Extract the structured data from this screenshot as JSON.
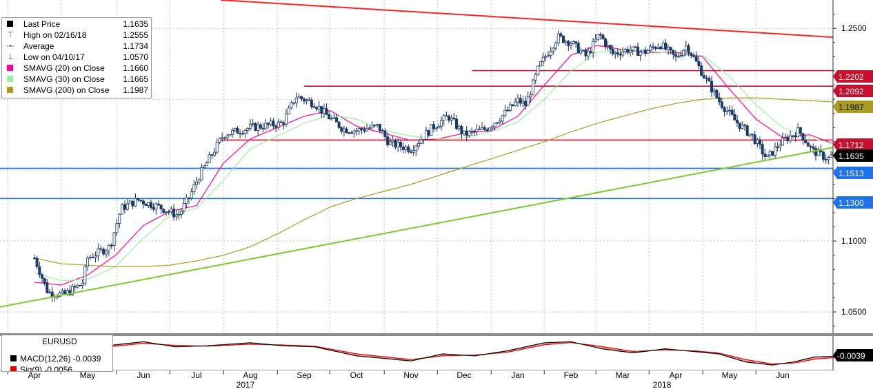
{
  "legend": [
    {
      "label": "Last Price",
      "value": "1.1635",
      "glyph": "square",
      "color": "#000000"
    },
    {
      "label": "High on 02/16/18",
      "value": "1.2555",
      "glyph": "T",
      "color": "#555555"
    },
    {
      "label": "Average",
      "value": "1.1734",
      "glyph": "dash",
      "color": "#555555"
    },
    {
      "label": "Low on 04/10/17",
      "value": "1.0570",
      "glyph": "L",
      "color": "#555555"
    },
    {
      "label": "SMAVG (20) on Close",
      "value": "1.1660",
      "glyph": "square",
      "color": "#ff00a0"
    },
    {
      "label": "SMAVG (30) on Close",
      "value": "1.1665",
      "glyph": "square",
      "color": "#9cf29c"
    },
    {
      "label": "SMAVG (200) on Close",
      "value": "1.1987",
      "glyph": "square",
      "color": "#a99c1e"
    }
  ],
  "macd_panel": {
    "title": "EURUSD",
    "rows": [
      {
        "label": "MACD(12,26)",
        "value": "-0.0039",
        "color": "#000000"
      },
      {
        "label": "Sig(9)",
        "value": "-0.0056",
        "color": "#e00000"
      }
    ],
    "last_value_tag": "-0.0039"
  },
  "chart_data": {
    "type": "candlestick",
    "instrument": "EURUSD",
    "x_labels": [
      "Apr",
      "May",
      "Jun",
      "Jul",
      "Aug",
      "Sep",
      "Oct",
      "Nov",
      "Dec",
      "Jan",
      "Feb",
      "Mar",
      "Apr",
      "May",
      "Jun"
    ],
    "year_labels": [
      "2017",
      "2018"
    ],
    "y_ticks": [
      "1.2500",
      "1.1000",
      "1.0500"
    ],
    "ylim": [
      1.035,
      1.27
    ],
    "grid": true,
    "price_tags": [
      {
        "label": "1.2202",
        "value": 1.2202,
        "bg": "#c8102e",
        "fg": "#ffffff"
      },
      {
        "label": "1.2092",
        "value": 1.2092,
        "bg": "#c8102e",
        "fg": "#ffffff"
      },
      {
        "label": "1.1987",
        "value": 1.1987,
        "bg": "#a99c1e",
        "fg": "#000000"
      },
      {
        "label": "1.1712",
        "value": 1.1712,
        "bg": "#c8102e",
        "fg": "#ffffff"
      },
      {
        "label": "1.1635",
        "value": 1.1635,
        "bg": "#000000",
        "fg": "#ffffff"
      },
      {
        "label": "1.1513",
        "value": 1.1513,
        "bg": "#1e73e8",
        "fg": "#ffffff"
      },
      {
        "label": "1.1300",
        "value": 1.13,
        "bg": "#1e73e8",
        "fg": "#ffffff"
      }
    ],
    "horizontal_levels": [
      {
        "value": 1.2202,
        "from_month": 8.15,
        "color": "#c8102e"
      },
      {
        "value": 1.2092,
        "from_month": 5.0,
        "color": "#c8102e"
      },
      {
        "value": 1.1712,
        "from_month": 3.45,
        "color": "#c8102e"
      },
      {
        "value": 1.1513,
        "from_month": 0.0,
        "color": "#1e73e8"
      },
      {
        "value": 1.13,
        "from_month": 0.0,
        "color": "#1e73e8"
      }
    ],
    "trend_lines": [
      {
        "name": "resistance",
        "from": [
          3.45,
          1.27
        ],
        "to": [
          15.4,
          1.2427
        ],
        "color": "#ff2020"
      },
      {
        "name": "support",
        "from": [
          0.0,
          1.0535
        ],
        "to": [
          15.4,
          1.1693
        ],
        "color": "#7dc832"
      }
    ],
    "price_anchors": [
      [
        0.0,
        1.088
      ],
      [
        0.25,
        1.064
      ],
      [
        0.55,
        1.062
      ],
      [
        0.9,
        1.07
      ],
      [
        1.0,
        1.088
      ],
      [
        1.4,
        1.096
      ],
      [
        1.6,
        1.123
      ],
      [
        1.9,
        1.129
      ],
      [
        2.3,
        1.124
      ],
      [
        2.65,
        1.118
      ],
      [
        2.85,
        1.13
      ],
      [
        3.05,
        1.146
      ],
      [
        3.5,
        1.175
      ],
      [
        4.0,
        1.18
      ],
      [
        4.6,
        1.183
      ],
      [
        4.85,
        1.202
      ],
      [
        5.2,
        1.197
      ],
      [
        5.45,
        1.188
      ],
      [
        5.75,
        1.179
      ],
      [
        6.0,
        1.178
      ],
      [
        6.4,
        1.181
      ],
      [
        6.6,
        1.169
      ],
      [
        7.0,
        1.165
      ],
      [
        7.4,
        1.18
      ],
      [
        7.7,
        1.188
      ],
      [
        8.0,
        1.175
      ],
      [
        8.4,
        1.179
      ],
      [
        8.7,
        1.188
      ],
      [
        9.0,
        1.199
      ],
      [
        9.15,
        1.196
      ],
      [
        9.4,
        1.223
      ],
      [
        9.75,
        1.244
      ],
      [
        10.0,
        1.24
      ],
      [
        10.3,
        1.23
      ],
      [
        10.55,
        1.246
      ],
      [
        10.8,
        1.232
      ],
      [
        11.1,
        1.235
      ],
      [
        11.4,
        1.233
      ],
      [
        11.7,
        1.239
      ],
      [
        12.0,
        1.229
      ],
      [
        12.2,
        1.238
      ],
      [
        12.5,
        1.218
      ],
      [
        12.8,
        1.199
      ],
      [
        13.1,
        1.185
      ],
      [
        13.45,
        1.173
      ],
      [
        13.7,
        1.158
      ],
      [
        13.95,
        1.169
      ],
      [
        14.3,
        1.178
      ],
      [
        14.55,
        1.164
      ],
      [
        14.85,
        1.158
      ],
      [
        15.1,
        1.166
      ],
      [
        15.3,
        1.1635
      ]
    ],
    "series": [
      {
        "name": "Last Price",
        "color": "#000000"
      },
      {
        "name": "SMAVG (20) on Close",
        "color": "#ff00a0",
        "anchors": [
          [
            0.0,
            1.071
          ],
          [
            0.5,
            1.069
          ],
          [
            1.0,
            1.076
          ],
          [
            1.5,
            1.09
          ],
          [
            2.0,
            1.111
          ],
          [
            2.5,
            1.121
          ],
          [
            3.0,
            1.125
          ],
          [
            3.5,
            1.155
          ],
          [
            4.0,
            1.172
          ],
          [
            4.5,
            1.18
          ],
          [
            5.0,
            1.188
          ],
          [
            5.5,
            1.192
          ],
          [
            6.0,
            1.181
          ],
          [
            6.5,
            1.176
          ],
          [
            7.0,
            1.171
          ],
          [
            7.5,
            1.172
          ],
          [
            8.0,
            1.176
          ],
          [
            8.5,
            1.178
          ],
          [
            9.0,
            1.188
          ],
          [
            9.5,
            1.21
          ],
          [
            10.0,
            1.231
          ],
          [
            10.5,
            1.238
          ],
          [
            11.0,
            1.235
          ],
          [
            11.5,
            1.233
          ],
          [
            12.0,
            1.233
          ],
          [
            12.5,
            1.23
          ],
          [
            13.0,
            1.207
          ],
          [
            13.5,
            1.186
          ],
          [
            14.0,
            1.173
          ],
          [
            14.5,
            1.175
          ],
          [
            15.0,
            1.168
          ],
          [
            15.3,
            1.166
          ]
        ]
      },
      {
        "name": "SMAVG (30) on Close",
        "color": "#9cf29c",
        "anchors": [
          [
            0.0,
            1.078
          ],
          [
            0.5,
            1.072
          ],
          [
            1.0,
            1.073
          ],
          [
            1.5,
            1.082
          ],
          [
            2.0,
            1.102
          ],
          [
            2.5,
            1.118
          ],
          [
            3.0,
            1.123
          ],
          [
            3.5,
            1.143
          ],
          [
            4.0,
            1.165
          ],
          [
            4.5,
            1.174
          ],
          [
            5.0,
            1.183
          ],
          [
            5.5,
            1.189
          ],
          [
            6.0,
            1.186
          ],
          [
            6.5,
            1.178
          ],
          [
            7.0,
            1.174
          ],
          [
            7.5,
            1.172
          ],
          [
            8.0,
            1.173
          ],
          [
            8.5,
            1.177
          ],
          [
            9.0,
            1.184
          ],
          [
            9.5,
            1.2
          ],
          [
            10.0,
            1.22
          ],
          [
            10.5,
            1.233
          ],
          [
            11.0,
            1.235
          ],
          [
            11.5,
            1.234
          ],
          [
            12.0,
            1.232
          ],
          [
            12.5,
            1.231
          ],
          [
            13.0,
            1.216
          ],
          [
            13.5,
            1.196
          ],
          [
            14.0,
            1.18
          ],
          [
            14.5,
            1.173
          ],
          [
            15.0,
            1.168
          ],
          [
            15.3,
            1.1665
          ]
        ]
      },
      {
        "name": "SMAVG (200) on Close",
        "color": "#a99c1e",
        "anchors": [
          [
            0.0,
            1.088
          ],
          [
            0.5,
            1.084
          ],
          [
            1.0,
            1.083
          ],
          [
            1.5,
            1.082
          ],
          [
            2.0,
            1.082
          ],
          [
            2.5,
            1.083
          ],
          [
            3.0,
            1.086
          ],
          [
            3.5,
            1.09
          ],
          [
            4.0,
            1.096
          ],
          [
            4.5,
            1.105
          ],
          [
            5.0,
            1.115
          ],
          [
            5.5,
            1.124
          ],
          [
            6.0,
            1.13
          ],
          [
            6.5,
            1.135
          ],
          [
            7.0,
            1.14
          ],
          [
            7.5,
            1.146
          ],
          [
            8.0,
            1.152
          ],
          [
            8.5,
            1.158
          ],
          [
            9.0,
            1.164
          ],
          [
            9.5,
            1.17
          ],
          [
            10.0,
            1.177
          ],
          [
            10.5,
            1.183
          ],
          [
            11.0,
            1.188
          ],
          [
            11.5,
            1.193
          ],
          [
            12.0,
            1.197
          ],
          [
            12.5,
            1.2
          ],
          [
            13.0,
            1.201
          ],
          [
            13.5,
            1.201
          ],
          [
            14.0,
            1.2
          ],
          [
            14.5,
            1.199
          ],
          [
            15.0,
            1.198
          ],
          [
            15.3,
            1.1987
          ]
        ]
      }
    ],
    "macd": {
      "ylim": [
        -0.0105,
        0.0055
      ],
      "macd_anchors": [
        [
          0.0,
          -0.002
        ],
        [
          0.8,
          -0.0005
        ],
        [
          1.5,
          0.0015
        ],
        [
          2.0,
          0.003
        ],
        [
          2.6,
          0.0005
        ],
        [
          3.2,
          0.001
        ],
        [
          4.0,
          0.0025
        ],
        [
          4.6,
          0.001
        ],
        [
          5.2,
          0.0005
        ],
        [
          6.0,
          -0.004
        ],
        [
          7.0,
          -0.0065
        ],
        [
          7.6,
          -0.003
        ],
        [
          8.2,
          -0.004
        ],
        [
          8.8,
          -0.0015
        ],
        [
          9.5,
          0.0025
        ],
        [
          10.0,
          0.003
        ],
        [
          10.6,
          -0.0005
        ],
        [
          11.2,
          -0.0025
        ],
        [
          11.8,
          -0.0005
        ],
        [
          12.4,
          -0.002
        ],
        [
          12.8,
          -0.003
        ],
        [
          13.3,
          -0.007
        ],
        [
          13.8,
          -0.0085
        ],
        [
          14.2,
          -0.007
        ],
        [
          14.6,
          -0.0045
        ],
        [
          15.0,
          -0.0042
        ],
        [
          15.3,
          -0.0039
        ]
      ],
      "signal_anchors": [
        [
          0.0,
          -0.0025
        ],
        [
          0.8,
          -0.0012
        ],
        [
          1.5,
          0.0008
        ],
        [
          2.0,
          0.0022
        ],
        [
          2.6,
          0.0012
        ],
        [
          3.2,
          0.0008
        ],
        [
          4.0,
          0.0018
        ],
        [
          4.6,
          0.0014
        ],
        [
          5.2,
          0.0008
        ],
        [
          6.0,
          -0.003
        ],
        [
          7.0,
          -0.0058
        ],
        [
          7.6,
          -0.004
        ],
        [
          8.2,
          -0.0036
        ],
        [
          8.8,
          -0.0022
        ],
        [
          9.5,
          0.0015
        ],
        [
          10.0,
          0.0026
        ],
        [
          10.6,
          0.0006
        ],
        [
          11.2,
          -0.0018
        ],
        [
          11.8,
          -0.001
        ],
        [
          12.4,
          -0.0016
        ],
        [
          12.8,
          -0.0026
        ],
        [
          13.3,
          -0.0058
        ],
        [
          13.8,
          -0.008
        ],
        [
          14.2,
          -0.0076
        ],
        [
          14.6,
          -0.0056
        ],
        [
          15.0,
          -0.0048
        ],
        [
          15.3,
          -0.0056
        ]
      ]
    }
  }
}
